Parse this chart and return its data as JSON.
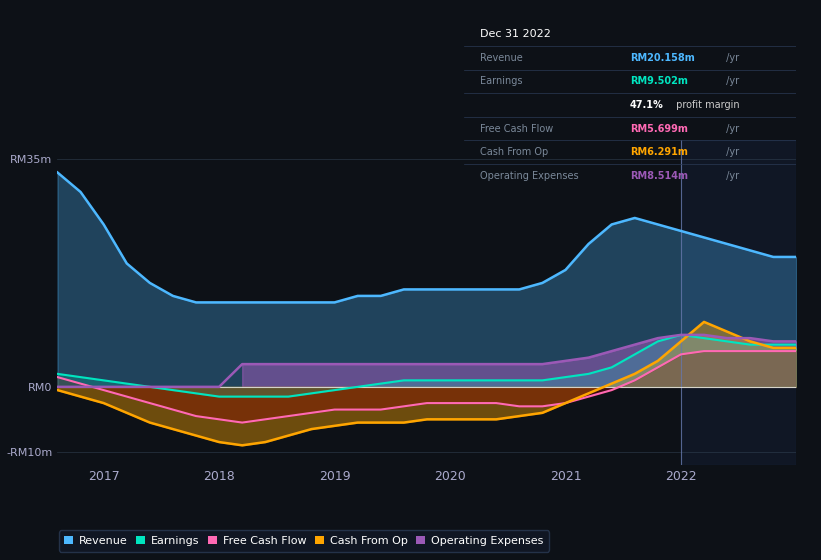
{
  "bg_color": "#0d1117",
  "revenue_color": "#4db8ff",
  "earnings_color": "#00e5c0",
  "fcf_color": "#ff69b4",
  "cashfromop_color": "#ffa500",
  "opex_color": "#9b59b6",
  "y_axis_label_top": "RM35m",
  "y_axis_label_zero": "RM0",
  "y_axis_label_bottom": "-RM10m",
  "x_ticks": [
    "2017",
    "2018",
    "2019",
    "2020",
    "2021",
    "2022"
  ],
  "legend_items": [
    {
      "label": "Revenue",
      "color": "#4db8ff"
    },
    {
      "label": "Earnings",
      "color": "#00e5c0"
    },
    {
      "label": "Free Cash Flow",
      "color": "#ff69b4"
    },
    {
      "label": "Cash From Op",
      "color": "#ffa500"
    },
    {
      "label": "Operating Expenses",
      "color": "#9b59b6"
    }
  ],
  "revenue": [
    33,
    30,
    25,
    19,
    16,
    14,
    13,
    13,
    13,
    13,
    13,
    13,
    13,
    14,
    14,
    15,
    15,
    15,
    15,
    15,
    15,
    16,
    18,
    22,
    25,
    26,
    25,
    24,
    23,
    22,
    21,
    20,
    20
  ],
  "earnings": [
    2,
    1.5,
    1,
    0.5,
    0,
    -0.5,
    -1,
    -1.5,
    -1.5,
    -1.5,
    -1.5,
    -1,
    -0.5,
    0,
    0.5,
    1,
    1,
    1,
    1,
    1,
    1,
    1,
    1.5,
    2,
    3,
    5,
    7,
    8,
    7.5,
    7,
    6.5,
    6.5,
    6.5
  ],
  "fcf": [
    1.5,
    0.5,
    -0.5,
    -1.5,
    -2.5,
    -3.5,
    -4.5,
    -5,
    -5.5,
    -5,
    -4.5,
    -4,
    -3.5,
    -3.5,
    -3.5,
    -3,
    -2.5,
    -2.5,
    -2.5,
    -2.5,
    -3,
    -3,
    -2.5,
    -1.5,
    -0.5,
    1,
    3,
    5,
    5.5,
    5.5,
    5.5,
    5.5,
    5.5
  ],
  "cashfromop": [
    -0.5,
    -1.5,
    -2.5,
    -4,
    -5.5,
    -6.5,
    -7.5,
    -8.5,
    -9,
    -8.5,
    -7.5,
    -6.5,
    -6,
    -5.5,
    -5.5,
    -5.5,
    -5,
    -5,
    -5,
    -5,
    -4.5,
    -4,
    -2.5,
    -1,
    0.5,
    2,
    4,
    7,
    10,
    8.5,
    7,
    6,
    6
  ],
  "opex": [
    0,
    0,
    0,
    0,
    0,
    0,
    0,
    0,
    3.5,
    3.5,
    3.5,
    3.5,
    3.5,
    3.5,
    3.5,
    3.5,
    3.5,
    3.5,
    3.5,
    3.5,
    3.5,
    3.5,
    4,
    4.5,
    5.5,
    6.5,
    7.5,
    8,
    8,
    7.5,
    7.5,
    7,
    7
  ],
  "x_range": [
    0,
    32
  ],
  "y_range": [
    -12,
    38
  ],
  "xtick_positions": [
    2,
    7,
    12,
    17,
    22,
    27
  ],
  "vertical_line_x": 27
}
